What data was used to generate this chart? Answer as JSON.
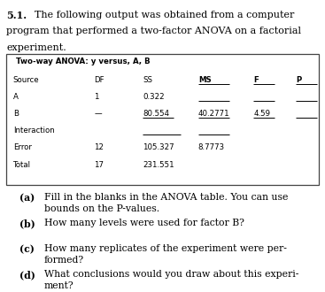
{
  "box_title": "Two-way ANOVA: y versus, A, B",
  "table_header_labels": [
    "Source",
    "DF",
    "SS",
    "MS",
    "F",
    "P"
  ],
  "table_rows": [
    [
      "A",
      "1",
      "0.322",
      "",
      "",
      ""
    ],
    [
      "B",
      "—",
      "80.554",
      "40.2771",
      "4.59",
      ""
    ],
    [
      "Interaction",
      "",
      "",
      "",
      "",
      ""
    ],
    [
      "Error",
      "12",
      "105.327",
      "8.7773",
      "",
      ""
    ],
    [
      "Total",
      "17",
      "231.551",
      "",
      "",
      ""
    ]
  ],
  "col_x": {
    "Source": 0.04,
    "DF": 0.29,
    "SS": 0.44,
    "MS": 0.61,
    "F": 0.78,
    "P": 0.91
  },
  "header_bold": [
    "MS",
    "F",
    "P"
  ],
  "font_color": "#000000",
  "bg_color": "#ffffff",
  "mono_font": "Courier New",
  "serif_font": "DejaVu Serif",
  "title_num": "5.1.",
  "title_line1": "The following output was obtained from a computer",
  "title_line2": "program that performed a two-factor ANOVA on a factorial",
  "title_line3": "experiment.",
  "questions": [
    [
      "(a)",
      "Fill in the blanks in the ANOVA table. You can use\nbounds on the P-values."
    ],
    [
      "(b)",
      "How many levels were used for factor B?"
    ],
    [
      "(c)",
      "How many replicates of the experiment were per-\nformed?"
    ],
    [
      "(d)",
      "What conclusions would you draw about this experi-\nment?"
    ]
  ]
}
